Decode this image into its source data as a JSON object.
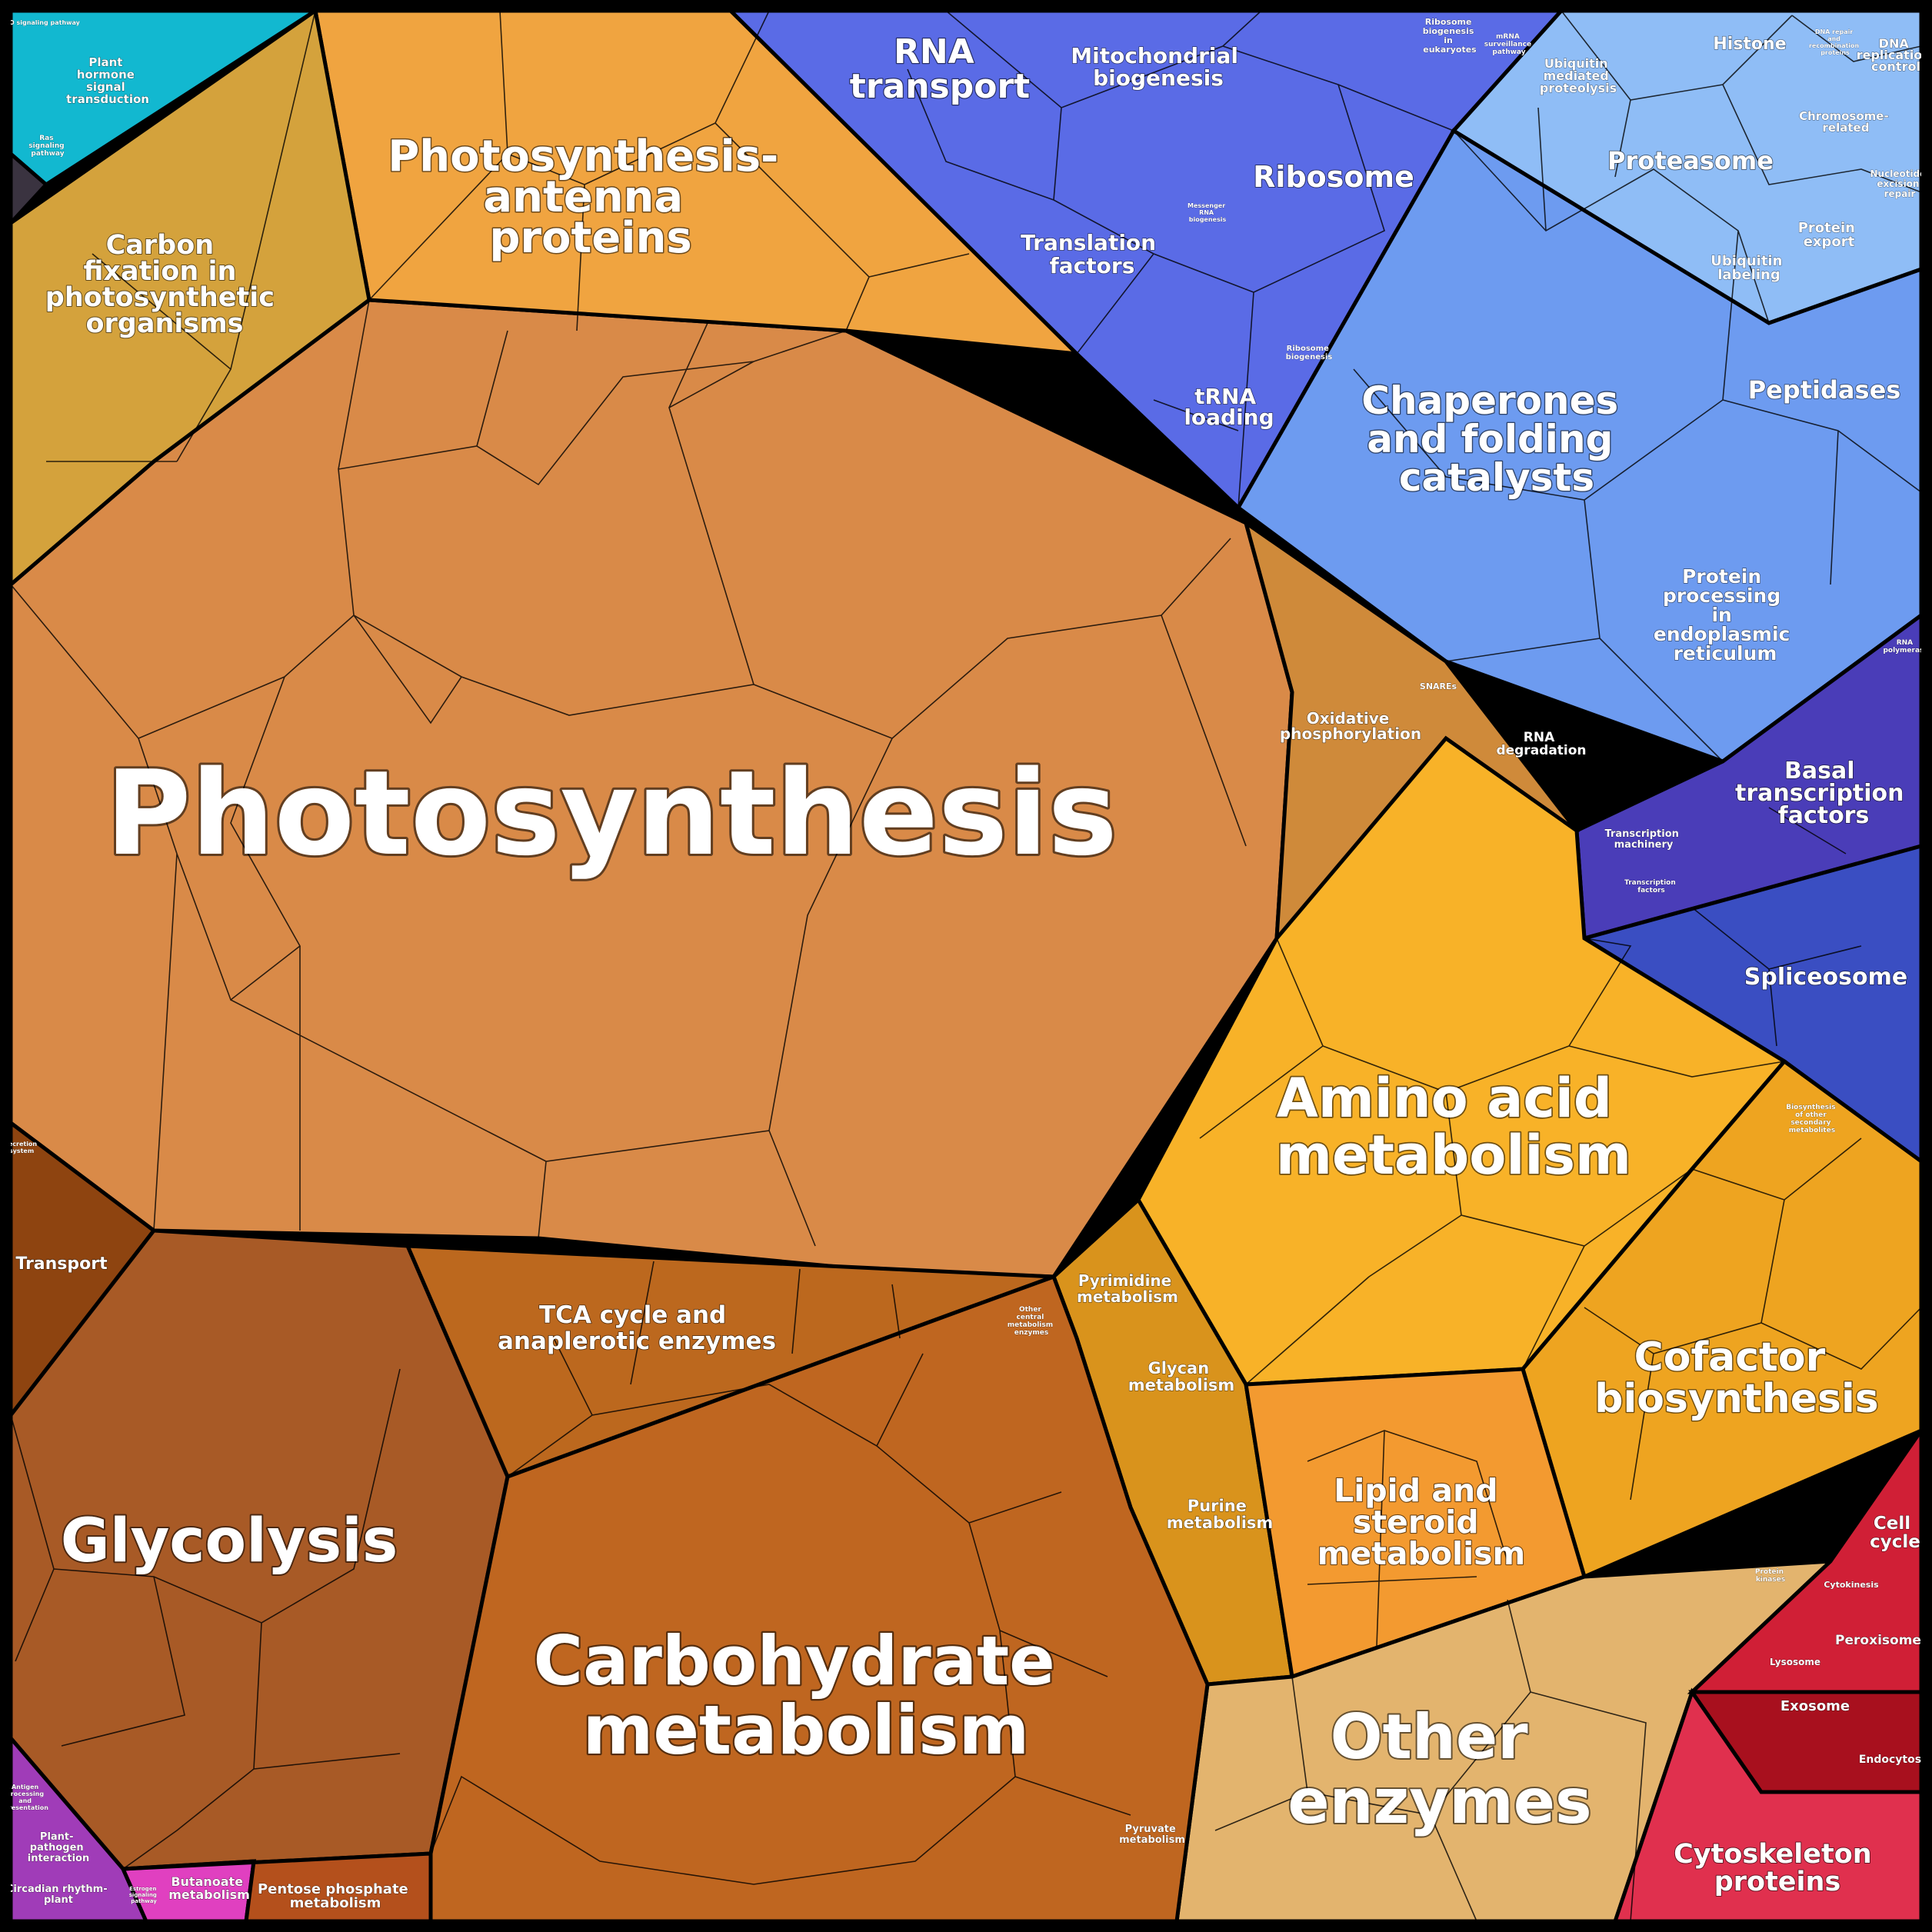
{
  "diagram": {
    "type": "voronoi-treemap",
    "groups": [
      {
        "name": "Photosynthesis",
        "color": "#D98A48"
      },
      {
        "name": "Photosynthesis-antenna proteins",
        "color": "#F0A440"
      },
      {
        "name": "Carbon fixation in photosynthetic organisms",
        "color": "#D4A23C"
      },
      {
        "name": "Oxidative phosphorylation",
        "color": "#CF8A3A"
      },
      {
        "name": "Glycolysis",
        "color": "#A85A26"
      },
      {
        "name": "TCA cycle and anaplerotic enzymes",
        "color": "#BC681E"
      },
      {
        "name": "Carbohydrate metabolism",
        "color": "#BF6620"
      },
      {
        "name": "Amino acid metabolism",
        "color": "#F8B228"
      },
      {
        "name": "Cofactor biosynthesis",
        "color": "#EEA420"
      },
      {
        "name": "Lipid and steroid metabolism",
        "color": "#F39A30"
      },
      {
        "name": "Other enzymes",
        "color": "#E3B46E"
      },
      {
        "name": "Chaperones and folding catalysts",
        "color": "#6D9BF0"
      },
      {
        "name": "Ribosome",
        "color": "#5A6BE6"
      },
      {
        "name": "RNA transport",
        "color": "#5266DA"
      },
      {
        "name": "Basal transcription factors",
        "color": "#4A3DB8"
      },
      {
        "name": "Spliceosome",
        "color": "#3A4EC2"
      },
      {
        "name": "Cytoskeleton proteins",
        "color": "#E0304E"
      },
      {
        "name": "Transport",
        "color": "#8E4410"
      },
      {
        "name": "Plant hormone signal transduction",
        "color": "#12B8D0"
      }
    ]
  },
  "labels": {
    "photosynthesis": "Photosynthesis",
    "antenna": [
      "Photosynthesis-",
      "antenna",
      "proteins"
    ],
    "carbon_fixation": [
      "Carbon",
      "fixation in",
      "photosynthetic",
      "organisms"
    ],
    "plant_hormone": [
      "Plant",
      "hormone",
      "signal",
      "transduction"
    ],
    "ras_signaling": [
      "Ras",
      "signaling",
      "pathway"
    ],
    "foxo": "FoxO signaling pathway",
    "rna_transport": [
      "RNA",
      "transport"
    ],
    "mito_biogenesis": [
      "Mitochondrial",
      "biogenesis"
    ],
    "ribosome": "Ribosome",
    "translation_factors": [
      "Translation",
      "factors"
    ],
    "trna_loading": [
      "tRNA",
      "loading"
    ],
    "ribosome_biogenesis": [
      "Ribosome",
      "biogenesis",
      "in",
      "eukaryotes"
    ],
    "mrna_surveillance": [
      "mRNA",
      "surveillance",
      "pathway"
    ],
    "messenger_rna_biogenesis": [
      "Messenger",
      "RNA",
      "biogenesis"
    ],
    "ribosome_biogenesis_small": [
      "Ribosome",
      "biogenesis"
    ],
    "ubiquitin_proteolysis": [
      "Ubiquitin",
      "mediated",
      "proteolysis"
    ],
    "histone": "Histone",
    "dna_repair_recomb": [
      "DNA repair",
      "and",
      "recombination",
      "proteins"
    ],
    "dna_replication": [
      "DNA",
      "replication",
      "control"
    ],
    "proteasome": "Proteasome",
    "chromosome_related": [
      "Chromosome-",
      "related"
    ],
    "nucleotide_excision": [
      "Nucleotide",
      "excision",
      "repair"
    ],
    "protein_export": [
      "Protein",
      "export"
    ],
    "ubiquitin_labeling": [
      "Ubiquitin",
      "labeling"
    ],
    "peptidases": "Peptidases",
    "chaperones": [
      "Chaperones",
      "and folding",
      "catalysts"
    ],
    "protein_er": [
      "Protein",
      "processing",
      "in",
      "endoplasmic",
      "reticulum"
    ],
    "snares": "SNAREs",
    "rna_degradation": [
      "RNA",
      "degradation"
    ],
    "rna_polymerase": [
      "RNA",
      "polymerase"
    ],
    "basal_tf": [
      "Basal",
      "transcription",
      "factors"
    ],
    "transcription_machinery": [
      "Transcription",
      "machinery"
    ],
    "transcription_factors": [
      "Transcription",
      "factors"
    ],
    "spliceosome": "Spliceosome",
    "oxidative_phos": [
      "Oxidative",
      "phosphorylation"
    ],
    "amino_acid": [
      "Amino acid",
      "metabolism"
    ],
    "biosynthesis_secondary": [
      "Biosynthesis",
      "of other",
      "secondary",
      "metabolites"
    ],
    "pyrimidine": [
      "Pyrimidine",
      "metabolism"
    ],
    "glycan": [
      "Glycan",
      "metabolism"
    ],
    "purine": [
      "Purine",
      "metabolism"
    ],
    "lipid": [
      "Lipid and",
      "steroid",
      "metabolism"
    ],
    "cofactor": [
      "Cofactor",
      "biosynthesis"
    ],
    "other_enzymes": [
      "Other",
      "enzymes"
    ],
    "protein_kinases": [
      "Protein",
      "kinases"
    ],
    "cell_cycle": [
      "Cell",
      "cycle"
    ],
    "cytokinesis": "Cytokinesis",
    "peroxisome": "Peroxisome",
    "lysosome": "Lysosome",
    "exosome": "Exosome",
    "endocytosis": "Endocytosis",
    "cytoskeleton": [
      "Cytoskeleton",
      "proteins"
    ],
    "secretion_system": [
      "Secretion",
      "system"
    ],
    "transport": "Transport",
    "glycolysis": "Glycolysis",
    "tca": [
      "TCA cycle and",
      "anaplerotic enzymes"
    ],
    "other_central": [
      "Other",
      "central",
      "metabolism",
      "enzymes"
    ],
    "carbohydrate": [
      "Carbohydrate",
      "metabolism"
    ],
    "pyruvate": [
      "Pyruvate",
      "metabolism"
    ],
    "butanoate": [
      "Butanoate",
      "metabolism"
    ],
    "pentose": [
      "Pentose phosphate",
      "metabolism"
    ],
    "antigen": [
      "Antigen",
      "processing",
      "and",
      "presentation"
    ],
    "plant_pathogen": [
      "Plant-",
      "pathogen",
      "interaction"
    ],
    "circadian": [
      "Circadian rhythm-",
      "plant"
    ],
    "estrogen": [
      "Estrogen",
      "signaling",
      "pathway"
    ]
  }
}
